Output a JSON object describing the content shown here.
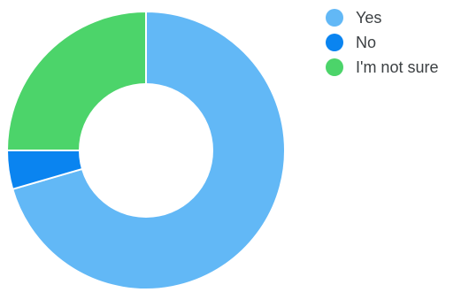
{
  "chart_data": {
    "type": "pie",
    "donut": true,
    "title": "",
    "legend_position": "top-right",
    "slices": [
      {
        "label": "Yes",
        "value": 70.5,
        "color": "#62b8f6"
      },
      {
        "label": "No",
        "value": 4.5,
        "color": "#0a84f0"
      },
      {
        "label": "I'm not sure",
        "value": 25,
        "color": "#4cd46a"
      }
    ]
  }
}
